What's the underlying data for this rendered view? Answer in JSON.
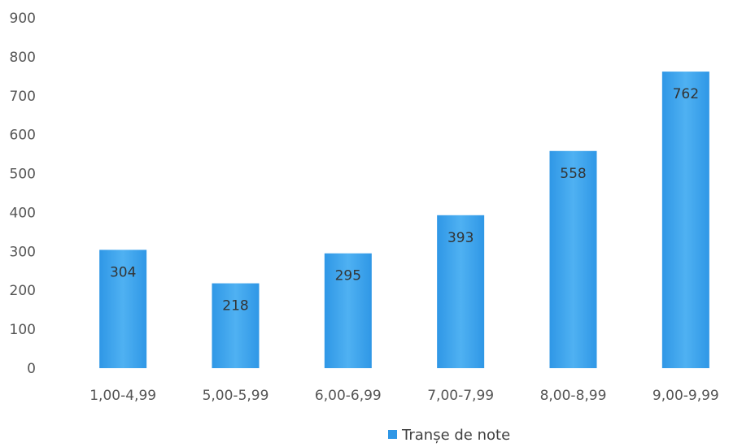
{
  "chart_data": {
    "type": "bar",
    "categories": [
      "1,00-4,99",
      "5,00-5,99",
      "6,00-6,99",
      "7,00-7,99",
      "8,00-8,99",
      "9,00-9,99"
    ],
    "series": [
      {
        "name": "Tranșe de note",
        "values": [
          304,
          218,
          295,
          393,
          558,
          762
        ]
      }
    ],
    "data_labels": [
      "304",
      "218",
      "295",
      "393",
      "558",
      "762"
    ],
    "y_ticks": [
      "0",
      "100",
      "200",
      "300",
      "400",
      "500",
      "600",
      "700",
      "800",
      "900"
    ],
    "ylim": [
      0,
      900
    ],
    "grid": false,
    "legend_position": "bottom",
    "bar_color": "#2f97e6",
    "bar_color_light": "#4fb1f2"
  }
}
